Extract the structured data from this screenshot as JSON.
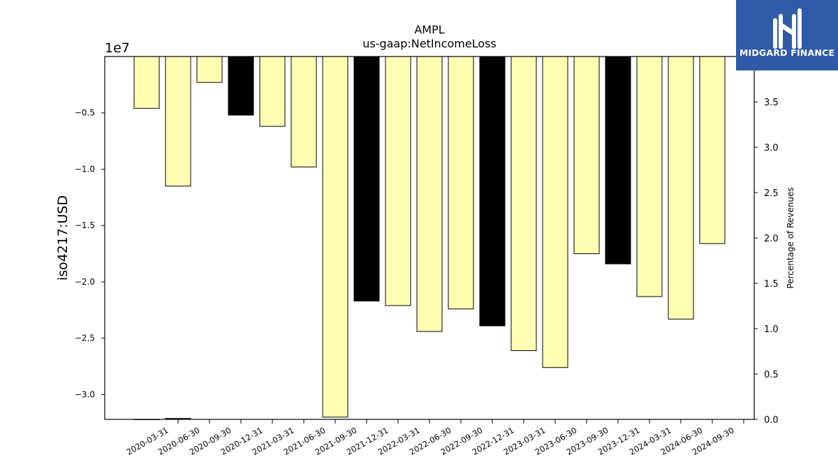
{
  "chart_data": {
    "type": "bar",
    "title": "AMPL",
    "subtitle": "us-gaap:NetIncomeLoss",
    "ylabel": "iso4217:USD",
    "ylabel_right": "Percentage of Revenues",
    "y_offset_label": "1e7",
    "categories": [
      "2020-03-31",
      "2020-06-30",
      "2020-09-30",
      "2020-12-31",
      "2021-03-31",
      "2021-06-30",
      "2021-09-30",
      "2021-12-31",
      "2022-03-31",
      "2022-06-30",
      "2022-09-30",
      "2022-12-31",
      "2023-03-31",
      "2023-06-30",
      "2023-09-30",
      "2023-12-31",
      "2024-03-31",
      "2024-06-30",
      "2024-09-30"
    ],
    "values": [
      -4600000,
      -11500000,
      -2300000,
      -5200000,
      -6200000,
      -9800000,
      -32000000,
      -21700000,
      -22100000,
      -24400000,
      -22400000,
      -23900000,
      -26100000,
      -27600000,
      -17500000,
      -18400000,
      -21300000,
      -23300000,
      -16600000
    ],
    "bar_colors": [
      "#ffffb3",
      "#ffffb3",
      "#ffffb3",
      "#000000",
      "#ffffb3",
      "#ffffb3",
      "#ffffb3",
      "#000000",
      "#ffffb3",
      "#ffffb3",
      "#ffffb3",
      "#000000",
      "#ffffb3",
      "#ffffb3",
      "#ffffb3",
      "#000000",
      "#ffffb3",
      "#ffffb3",
      "#ffffb3"
    ],
    "secondary_values": [
      0,
      0.01
    ],
    "ylim": [
      -32200000,
      0
    ],
    "yticks": [
      -5000000,
      -10000000,
      -15000000,
      -20000000,
      -25000000,
      -30000000
    ],
    "ytick_labels": [
      "−0.5",
      "−1.0",
      "−1.5",
      "−2.0",
      "−2.5",
      "−3.0"
    ],
    "ylim_right": [
      0,
      4.0
    ],
    "yticks_right": [
      0,
      0.5,
      1.0,
      1.5,
      2.0,
      2.5,
      3.0,
      3.5
    ],
    "ytick_labels_right": [
      "0.0",
      "0.5",
      "1.0",
      "1.5",
      "2.0",
      "2.5",
      "3.0",
      "3.5"
    ],
    "grid": false,
    "colors": {
      "highlight": "#000000",
      "default": "#ffffb3",
      "edge": "#000000"
    }
  },
  "logo": {
    "text": "MIDGARD FINANCE",
    "background": "#2e5aa8",
    "icon": "midgard-logo-icon"
  }
}
